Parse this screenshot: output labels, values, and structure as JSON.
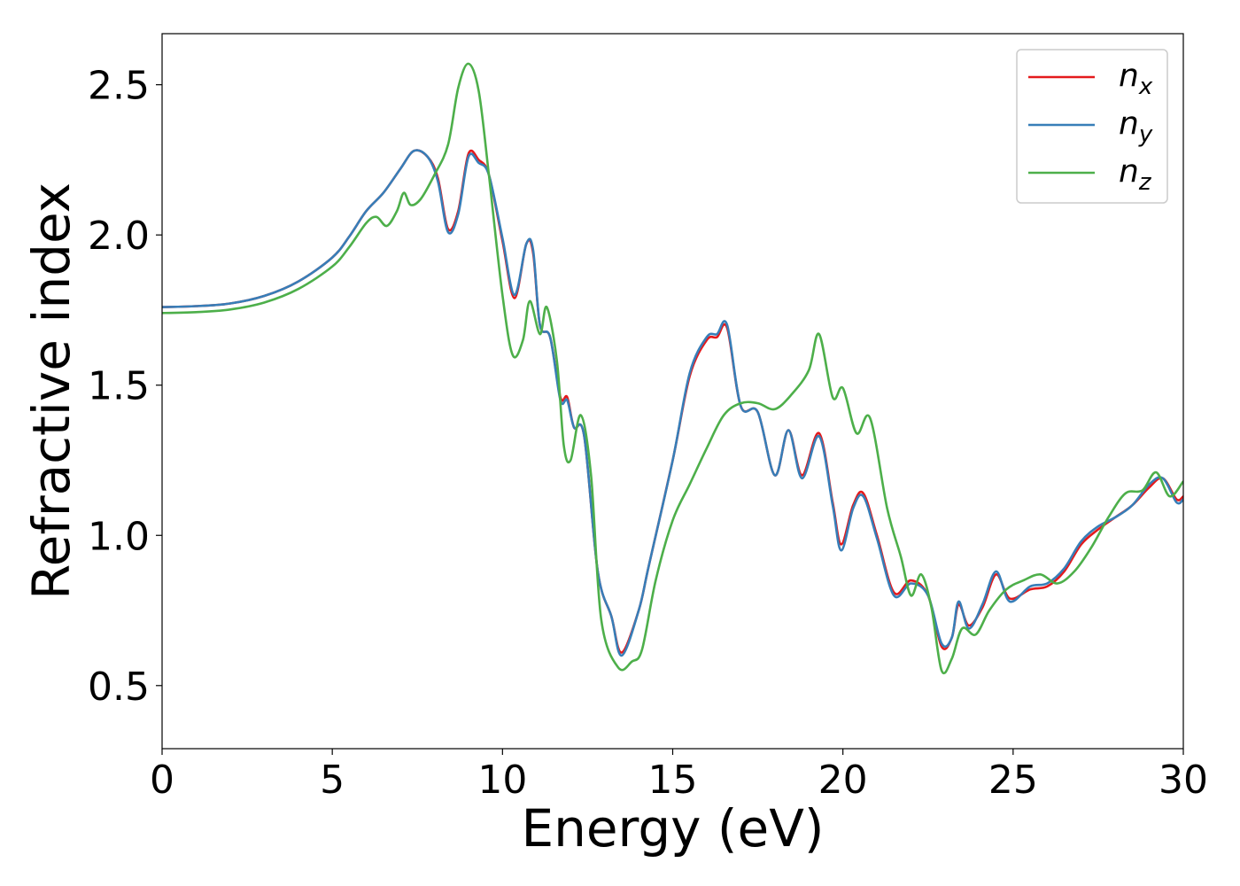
{
  "chart_data": {
    "type": "line",
    "title": "",
    "xlabel": "Energy (eV)",
    "ylabel": "Refractive index",
    "xlim": [
      0,
      30
    ],
    "ylim": [
      0.29,
      2.67
    ],
    "xticks": [
      0,
      5,
      10,
      15,
      20,
      25,
      30
    ],
    "yticks": [
      0.5,
      1.0,
      1.5,
      2.0,
      2.5
    ],
    "xtick_labels": [
      "0",
      "5",
      "10",
      "15",
      "20",
      "25",
      "30"
    ],
    "ytick_labels": [
      "0.5",
      "1.0",
      "1.5",
      "2.0",
      "2.5"
    ],
    "grid": false,
    "legend_position": "top-right",
    "series": [
      {
        "name": "n",
        "subscript": "x",
        "color": "#e41a1c",
        "points": [
          [
            0,
            1.76
          ],
          [
            1,
            1.763
          ],
          [
            2,
            1.772
          ],
          [
            3,
            1.797
          ],
          [
            4,
            1.845
          ],
          [
            5,
            1.925
          ],
          [
            5.5,
            1.995
          ],
          [
            6,
            2.08
          ],
          [
            6.5,
            2.14
          ],
          [
            7,
            2.22
          ],
          [
            7.4,
            2.28
          ],
          [
            7.8,
            2.26
          ],
          [
            8.1,
            2.19
          ],
          [
            8.4,
            2.02
          ],
          [
            8.7,
            2.08
          ],
          [
            9.0,
            2.27
          ],
          [
            9.3,
            2.25
          ],
          [
            9.6,
            2.2
          ],
          [
            10.0,
            1.98
          ],
          [
            10.35,
            1.79
          ],
          [
            10.7,
            1.97
          ],
          [
            10.9,
            1.94
          ],
          [
            11.1,
            1.7
          ],
          [
            11.4,
            1.66
          ],
          [
            11.7,
            1.46
          ],
          [
            11.9,
            1.46
          ],
          [
            12.1,
            1.36
          ],
          [
            12.4,
            1.33
          ],
          [
            12.8,
            0.88
          ],
          [
            13.2,
            0.73
          ],
          [
            13.5,
            0.61
          ],
          [
            14.0,
            0.75
          ],
          [
            14.3,
            0.9
          ],
          [
            15.0,
            1.25
          ],
          [
            15.5,
            1.53
          ],
          [
            16.0,
            1.65
          ],
          [
            16.3,
            1.66
          ],
          [
            16.6,
            1.69
          ],
          [
            17.0,
            1.43
          ],
          [
            17.5,
            1.41
          ],
          [
            18.0,
            1.2
          ],
          [
            18.4,
            1.35
          ],
          [
            18.8,
            1.2
          ],
          [
            19.3,
            1.34
          ],
          [
            19.7,
            1.11
          ],
          [
            19.95,
            0.97
          ],
          [
            20.3,
            1.1
          ],
          [
            20.6,
            1.14
          ],
          [
            21.0,
            1.0
          ],
          [
            21.5,
            0.81
          ],
          [
            22.0,
            0.85
          ],
          [
            22.5,
            0.8
          ],
          [
            22.9,
            0.63
          ],
          [
            23.2,
            0.66
          ],
          [
            23.4,
            0.77
          ],
          [
            23.7,
            0.7
          ],
          [
            24.1,
            0.76
          ],
          [
            24.5,
            0.87
          ],
          [
            24.9,
            0.79
          ],
          [
            25.5,
            0.82
          ],
          [
            26.0,
            0.83
          ],
          [
            26.5,
            0.88
          ],
          [
            27.0,
            0.97
          ],
          [
            27.5,
            1.02
          ],
          [
            28.0,
            1.06
          ],
          [
            28.5,
            1.1
          ],
          [
            29.0,
            1.16
          ],
          [
            29.4,
            1.19
          ],
          [
            29.8,
            1.12
          ],
          [
            30,
            1.13
          ]
        ]
      },
      {
        "name": "n",
        "subscript": "y",
        "color": "#377eb8",
        "points": [
          [
            0,
            1.76
          ],
          [
            1,
            1.763
          ],
          [
            2,
            1.772
          ],
          [
            3,
            1.797
          ],
          [
            4,
            1.845
          ],
          [
            5,
            1.925
          ],
          [
            5.5,
            1.995
          ],
          [
            6,
            2.08
          ],
          [
            6.5,
            2.14
          ],
          [
            7,
            2.22
          ],
          [
            7.4,
            2.28
          ],
          [
            7.8,
            2.26
          ],
          [
            8.1,
            2.18
          ],
          [
            8.4,
            2.01
          ],
          [
            8.7,
            2.07
          ],
          [
            9.0,
            2.26
          ],
          [
            9.3,
            2.24
          ],
          [
            9.6,
            2.2
          ],
          [
            10.0,
            1.99
          ],
          [
            10.35,
            1.8
          ],
          [
            10.7,
            1.97
          ],
          [
            10.9,
            1.95
          ],
          [
            11.1,
            1.7
          ],
          [
            11.4,
            1.66
          ],
          [
            11.7,
            1.45
          ],
          [
            11.9,
            1.45
          ],
          [
            12.1,
            1.36
          ],
          [
            12.4,
            1.33
          ],
          [
            12.8,
            0.88
          ],
          [
            13.2,
            0.73
          ],
          [
            13.5,
            0.6
          ],
          [
            14.0,
            0.75
          ],
          [
            14.3,
            0.9
          ],
          [
            15.0,
            1.25
          ],
          [
            15.5,
            1.54
          ],
          [
            16.0,
            1.66
          ],
          [
            16.3,
            1.67
          ],
          [
            16.6,
            1.7
          ],
          [
            17.0,
            1.43
          ],
          [
            17.5,
            1.41
          ],
          [
            18.0,
            1.2
          ],
          [
            18.4,
            1.35
          ],
          [
            18.8,
            1.19
          ],
          [
            19.3,
            1.33
          ],
          [
            19.7,
            1.1
          ],
          [
            19.95,
            0.95
          ],
          [
            20.3,
            1.09
          ],
          [
            20.6,
            1.13
          ],
          [
            21.0,
            0.99
          ],
          [
            21.5,
            0.8
          ],
          [
            22.0,
            0.84
          ],
          [
            22.5,
            0.8
          ],
          [
            22.9,
            0.64
          ],
          [
            23.2,
            0.66
          ],
          [
            23.4,
            0.78
          ],
          [
            23.7,
            0.69
          ],
          [
            24.1,
            0.77
          ],
          [
            24.5,
            0.88
          ],
          [
            24.9,
            0.78
          ],
          [
            25.5,
            0.83
          ],
          [
            26.0,
            0.84
          ],
          [
            26.5,
            0.89
          ],
          [
            27.0,
            0.98
          ],
          [
            27.5,
            1.03
          ],
          [
            28.0,
            1.06
          ],
          [
            28.5,
            1.1
          ],
          [
            29.0,
            1.17
          ],
          [
            29.4,
            1.19
          ],
          [
            29.8,
            1.11
          ],
          [
            30,
            1.12
          ]
        ]
      },
      {
        "name": "n",
        "subscript": "z",
        "color": "#4daf4a",
        "points": [
          [
            0,
            1.74
          ],
          [
            1,
            1.743
          ],
          [
            2,
            1.752
          ],
          [
            3,
            1.775
          ],
          [
            4,
            1.82
          ],
          [
            5,
            1.895
          ],
          [
            5.5,
            1.96
          ],
          [
            6,
            2.04
          ],
          [
            6.3,
            2.06
          ],
          [
            6.6,
            2.03
          ],
          [
            6.9,
            2.08
          ],
          [
            7.1,
            2.14
          ],
          [
            7.3,
            2.1
          ],
          [
            7.6,
            2.12
          ],
          [
            8.0,
            2.2
          ],
          [
            8.4,
            2.3
          ],
          [
            8.7,
            2.49
          ],
          [
            9.0,
            2.57
          ],
          [
            9.3,
            2.48
          ],
          [
            9.6,
            2.2
          ],
          [
            10.0,
            1.8
          ],
          [
            10.3,
            1.6
          ],
          [
            10.6,
            1.65
          ],
          [
            10.8,
            1.78
          ],
          [
            11.1,
            1.67
          ],
          [
            11.3,
            1.76
          ],
          [
            11.6,
            1.58
          ],
          [
            11.8,
            1.3
          ],
          [
            12.0,
            1.25
          ],
          [
            12.3,
            1.4
          ],
          [
            12.6,
            1.2
          ],
          [
            12.9,
            0.72
          ],
          [
            13.4,
            0.56
          ],
          [
            13.8,
            0.58
          ],
          [
            14.1,
            0.62
          ],
          [
            14.5,
            0.85
          ],
          [
            15.0,
            1.05
          ],
          [
            15.5,
            1.17
          ],
          [
            16.0,
            1.29
          ],
          [
            16.5,
            1.4
          ],
          [
            17.0,
            1.44
          ],
          [
            17.5,
            1.44
          ],
          [
            18.0,
            1.42
          ],
          [
            18.5,
            1.47
          ],
          [
            19.0,
            1.55
          ],
          [
            19.3,
            1.67
          ],
          [
            19.7,
            1.46
          ],
          [
            20.0,
            1.49
          ],
          [
            20.4,
            1.34
          ],
          [
            20.8,
            1.39
          ],
          [
            21.3,
            1.09
          ],
          [
            21.7,
            0.93
          ],
          [
            22.0,
            0.8
          ],
          [
            22.3,
            0.87
          ],
          [
            22.6,
            0.76
          ],
          [
            22.9,
            0.55
          ],
          [
            23.2,
            0.59
          ],
          [
            23.5,
            0.69
          ],
          [
            23.9,
            0.67
          ],
          [
            24.3,
            0.75
          ],
          [
            24.8,
            0.82
          ],
          [
            25.3,
            0.85
          ],
          [
            25.8,
            0.87
          ],
          [
            26.3,
            0.84
          ],
          [
            26.8,
            0.88
          ],
          [
            27.3,
            0.96
          ],
          [
            27.8,
            1.06
          ],
          [
            28.3,
            1.14
          ],
          [
            28.8,
            1.15
          ],
          [
            29.2,
            1.21
          ],
          [
            29.6,
            1.13
          ],
          [
            30,
            1.18
          ]
        ]
      }
    ]
  }
}
